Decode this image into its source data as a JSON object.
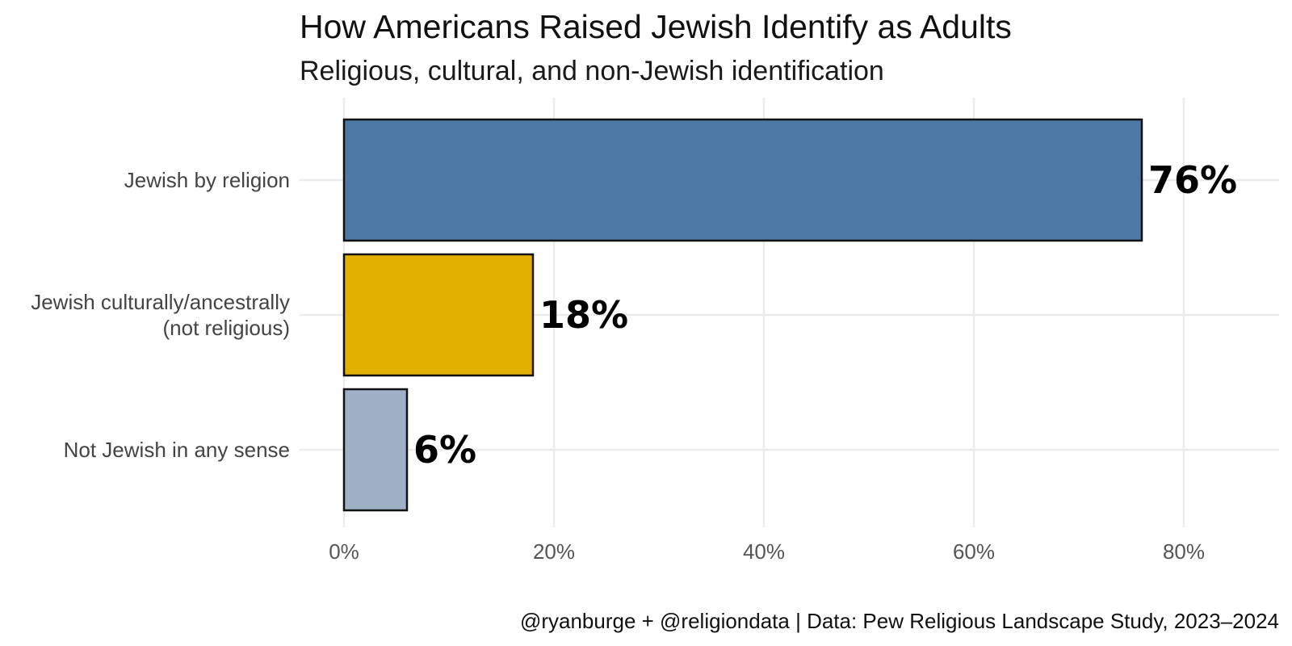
{
  "chart_data": {
    "type": "bar",
    "orientation": "horizontal",
    "title": "How Americans Raised Jewish Identify as Adults",
    "subtitle": "Religious, cultural, and non-Jewish identification",
    "caption": "@ryanburge + @religiondata | Data: Pew Religious Landscape Study, 2023–2024",
    "categories": [
      [
        "Jewish by religion"
      ],
      [
        "Jewish culturally/ancestrally",
        "(not religious)"
      ],
      [
        "Not Jewish in any sense"
      ]
    ],
    "values": [
      76,
      18,
      6
    ],
    "data_labels": [
      "76%",
      "18%",
      "6%"
    ],
    "colors": [
      "#4e79a7",
      "#e1b000",
      "#a0b0c6"
    ],
    "xlim": [
      0,
      89
    ],
    "xticks": [
      0,
      20,
      40,
      60,
      80
    ],
    "xtick_labels": [
      "0%",
      "20%",
      "40%",
      "60%",
      "80%"
    ],
    "xlabel": "",
    "ylabel": "",
    "grid": true,
    "legend": "none"
  }
}
